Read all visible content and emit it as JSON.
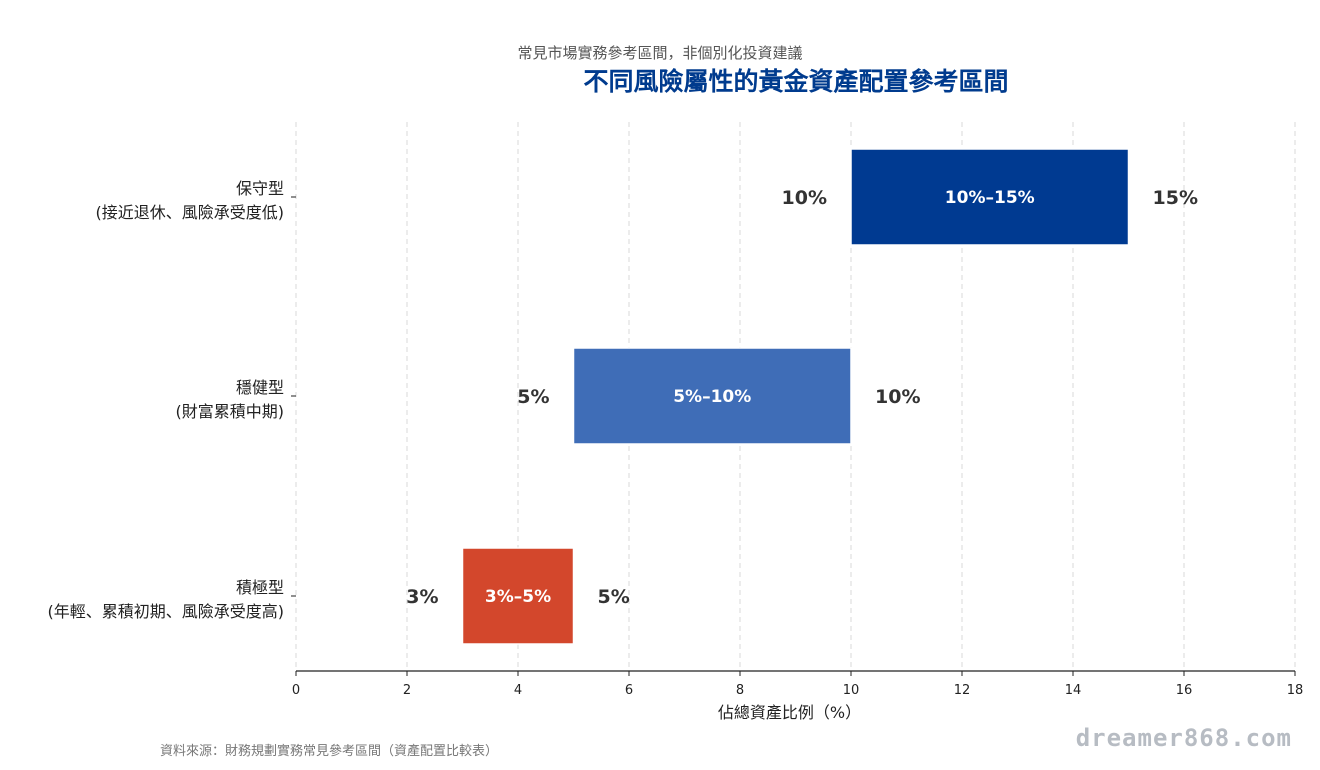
{
  "subtitle": "常見市場實務參考區間，非個別化投資建議",
  "source_note": "資料來源：財務規劃實務常見參考區間（資產配置比較表）",
  "watermark": "dreamer868.com",
  "chart_data": {
    "type": "bar",
    "orientation": "horizontal",
    "title": "不同風險屬性的黃金資產配置參考區間",
    "xlabel": "佔總資產比例（%）",
    "ylabel": "",
    "xlim": [
      0,
      18
    ],
    "xticks": [
      0,
      2,
      4,
      6,
      8,
      10,
      12,
      14,
      16,
      18
    ],
    "grid": "vertical-dashed",
    "categories": [
      {
        "line1": "保守型",
        "line2": "(接近退休、風險承受度低)"
      },
      {
        "line1": "穩健型",
        "line2": "(財富累積中期)"
      },
      {
        "line1": "積極型",
        "line2": "(年輕、累積初期、風險承受度高)"
      }
    ],
    "ranges": [
      {
        "start": 10,
        "end": 15,
        "label": "10%–15%",
        "start_label": "10%",
        "end_label": "15%",
        "color": "#003a91"
      },
      {
        "start": 5,
        "end": 10,
        "label": "5%–10%",
        "start_label": "5%",
        "end_label": "10%",
        "color": "#3f6db7"
      },
      {
        "start": 3,
        "end": 5,
        "label": "3%–5%",
        "start_label": "3%",
        "end_label": "5%",
        "color": "#d3472c"
      }
    ]
  }
}
